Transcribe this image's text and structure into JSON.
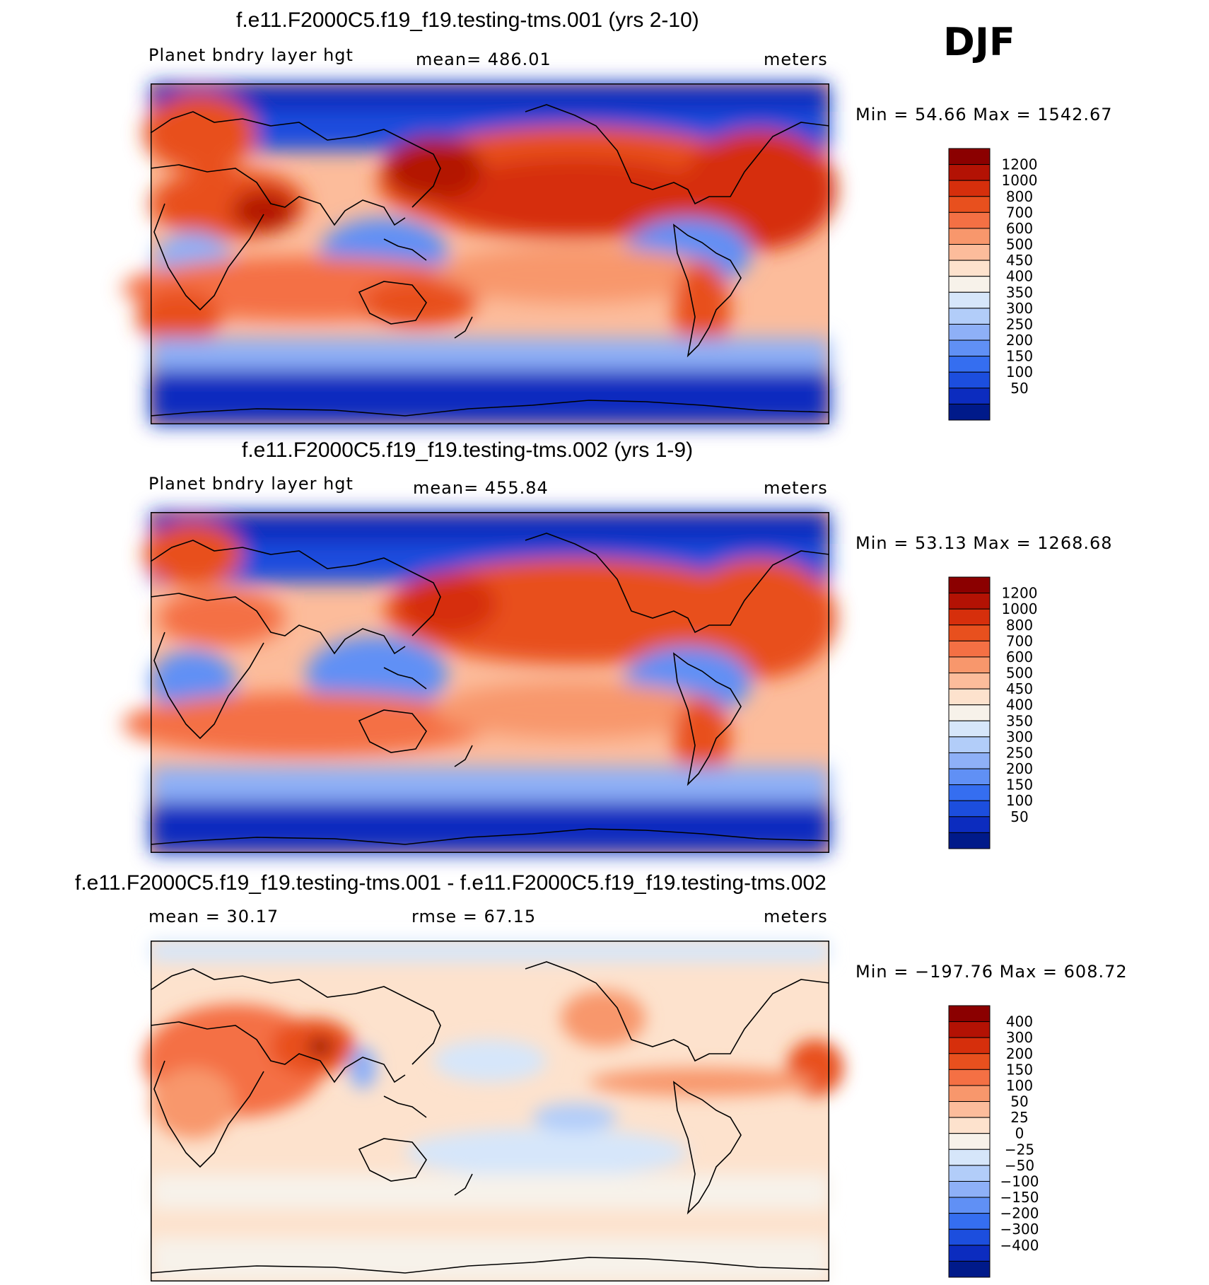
{
  "season": "DJF",
  "panels": [
    {
      "title": "f.e11.F2000C5.f19_f19.testing-tms.001 (yrs 2-10)",
      "left_label": "Planet bndry layer hgt",
      "center_label": "mean= 486.01",
      "units": "meters",
      "minmax": "Min =   54.66 Max = 1542.67",
      "colorbar_labels": [
        "1200",
        "1000",
        "800",
        "700",
        "600",
        "500",
        "450",
        "400",
        "350",
        "300",
        "250",
        "200",
        "150",
        "100",
        "50"
      ],
      "colorbar_colors": [
        "#8b0000",
        "#b31204",
        "#d62f0c",
        "#e8501e",
        "#f47044",
        "#f8976c",
        "#fcbc9b",
        "#fde2cd",
        "#f7f2ea",
        "#d6e6fa",
        "#b2cdf9",
        "#8eb0f7",
        "#6090f5",
        "#356ef0",
        "#1c4ede",
        "#0c2cbf",
        "#001a8a"
      ]
    },
    {
      "title": "f.e11.F2000C5.f19_f19.testing-tms.002 (yrs 1-9)",
      "left_label": "Planet bndry layer hgt",
      "center_label": "mean= 455.84",
      "units": "meters",
      "minmax": "Min =   53.13 Max = 1268.68",
      "colorbar_labels": [
        "1200",
        "1000",
        "800",
        "700",
        "600",
        "500",
        "450",
        "400",
        "350",
        "300",
        "250",
        "200",
        "150",
        "100",
        "50"
      ],
      "colorbar_colors": [
        "#8b0000",
        "#b31204",
        "#d62f0c",
        "#e8501e",
        "#f47044",
        "#f8976c",
        "#fcbc9b",
        "#fde2cd",
        "#f7f2ea",
        "#d6e6fa",
        "#b2cdf9",
        "#8eb0f7",
        "#6090f5",
        "#356ef0",
        "#1c4ede",
        "#0c2cbf",
        "#001a8a"
      ]
    },
    {
      "title": "f.e11.F2000C5.f19_f19.testing-tms.001 - f.e11.F2000C5.f19_f19.testing-tms.002",
      "left_label": "mean =   30.17",
      "center_label": "rmse =   67.15",
      "units": "meters",
      "minmax": "Min = −197.76 Max = 608.72",
      "colorbar_labels": [
        "400",
        "300",
        "200",
        "150",
        "100",
        "50",
        "25",
        "0",
        "−25",
        "−50",
        "−100",
        "−150",
        "−200",
        "−300",
        "−400"
      ],
      "colorbar_colors": [
        "#8b0000",
        "#b31204",
        "#d62f0c",
        "#e8501e",
        "#f47044",
        "#f8976c",
        "#fcbc9b",
        "#fde2cd",
        "#f7f2ea",
        "#d6e6fa",
        "#b2cdf9",
        "#8eb0f7",
        "#6090f5",
        "#356ef0",
        "#1c4ede",
        "#0c2cbf",
        "#001a8a"
      ]
    }
  ]
}
